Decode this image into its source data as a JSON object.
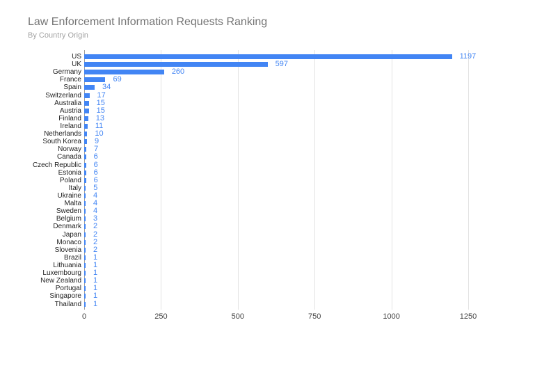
{
  "chart_data": {
    "type": "bar",
    "orientation": "horizontal",
    "title": "Law Enforcement Information Requests Ranking",
    "subtitle": "By Country Origin",
    "xlabel": "",
    "ylabel": "",
    "categories": [
      "US",
      "UK",
      "Germany",
      "France",
      "Spain",
      "Switzerland",
      "Australia",
      "Austria",
      "Finland",
      "Ireland",
      "Netherlands",
      "South Korea",
      "Norway",
      "Canada",
      "Czech Republic",
      "Estonia",
      "Poland",
      "Italy",
      "Ukraine",
      "Malta",
      "Sweden",
      "Belgium",
      "Denmark",
      "Japan",
      "Monaco",
      "Slovenia",
      "Brazil",
      "Lithuania",
      "Luxembourg",
      "New Zealand",
      "Portugal",
      "Singapore",
      "Thailand"
    ],
    "values": [
      1197,
      597,
      260,
      69,
      34,
      17,
      15,
      15,
      13,
      11,
      10,
      9,
      7,
      6,
      6,
      6,
      6,
      5,
      4,
      4,
      4,
      3,
      2,
      2,
      2,
      2,
      1,
      1,
      1,
      1,
      1,
      1,
      1
    ],
    "xlim": [
      0,
      1250
    ],
    "x_ticks": [
      0,
      250,
      500,
      750,
      1000,
      1250
    ],
    "grid": true,
    "legend_position": "none",
    "value_labels_shown": true,
    "colors": {
      "bar": "#4285f4",
      "value_label": "#4285f4",
      "title": "#757575",
      "subtitle": "#a3a3a3",
      "category_label": "#222222",
      "tick_label": "#424242",
      "gridline": "#e3e3e3",
      "axis_line": "#9e9e9e"
    }
  }
}
